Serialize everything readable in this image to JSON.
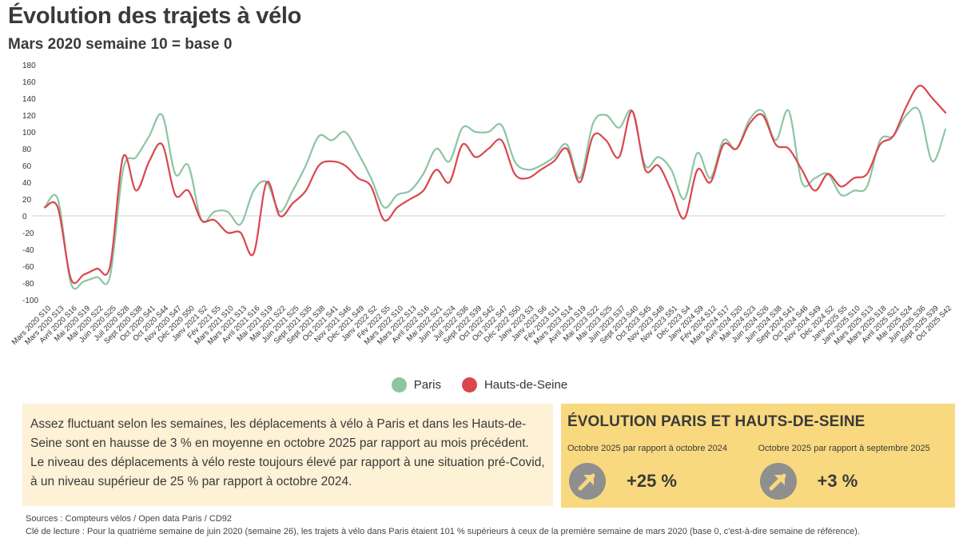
{
  "title": "Évolution des trajets à vélo",
  "subtitle": "Mars 2020 semaine 10 = base 0",
  "legend": [
    {
      "name": "Paris",
      "color": "#8dc5a4"
    },
    {
      "name": "Hauts-de-Seine",
      "color": "#d9474d"
    }
  ],
  "comment": "Assez fluctuant selon les semaines, les déplacements à vélo à Paris et dans les Hauts-de-Seine sont en hausse de 3 % en moyenne en octobre 2025 par rapport au mois précédent. Le niveau des déplacements à vélo reste toujours élevé par rapport à une situation pré-Covid, à un niveau supérieur de 25 % par rapport à octobre 2024.",
  "evolution": {
    "title": "ÉVOLUTION PARIS ET HAUTS-DE-SEINE",
    "items": [
      {
        "label": "Octobre 2025 par rapport à octobre 2024",
        "value": "+25 %",
        "icon": "arrow-up-right-icon"
      },
      {
        "label": "Octobre 2025 par rapport à septembre 2025",
        "value": "+3 %",
        "icon": "arrow-up-right-icon"
      }
    ]
  },
  "sources": "Sources : Compteurs vélos / Open data Paris / CD92",
  "key_note": "Clé de lecture : Pour la quatrième semaine de juin 2020 (semaine 26), les trajets à vélo dans Paris étaient 101 % supérieurs à ceux de la première semaine de mars 2020  (base 0, c'est-à-dire semaine de référence).",
  "chart_data": {
    "type": "line",
    "title": "Évolution des trajets à vélo",
    "subtitle": "Mars 2020 semaine 10 = base 0",
    "ylim": [
      -100,
      180
    ],
    "yticks": [
      180,
      160,
      140,
      120,
      100,
      80,
      60,
      40,
      20,
      0,
      -20,
      -40,
      -60,
      -80,
      -100
    ],
    "legend_position": "bottom",
    "categories": [
      "Mars 2020 S10",
      "Mars 2020 S13",
      "Avril 2020 S16",
      "Mai 2020 S19",
      "Mai 2020 S22",
      "Juin 2020 S25",
      "Juil 2020 S28",
      "Sept 2020 S38",
      "Oct 2020 S41",
      "Oct 2020 S44",
      "Nov 2020 S47",
      "Déc 2020 S50",
      "Janv 2021 S2",
      "Fév 2021 S5",
      "Mars 2021 S10",
      "Mars 2021 S13",
      "Avril 2021 S16",
      "Mai 2021 S19",
      "Mai 2021 S22",
      "Juin 2021 S25",
      "Sept 2021 S35",
      "Sept 2021 S38",
      "Oct 2021 S41",
      "Nov 2021 S46",
      "Déc 2021 S49",
      "Janv 2022 S2",
      "Fév 2022 S5",
      "Mars 2022 S10",
      "Mars 2022 S13",
      "Avril 2022 S16",
      "Mai 2022 S21",
      "Juin 2022 S24",
      "Juil 2022 S36",
      "Sept 2022 S39",
      "Oct 2022 S42",
      "Oct 2022 S47",
      "Déc 2022 S50",
      "Janv 2023 S3",
      "Janv 2023 S6",
      "Fév 2023 S11",
      "Mars 2023 S14",
      "Avril 2023 S19",
      "Mai 2023 S22",
      "Mai 2023 S25",
      "Juin 2023 S37",
      "Sept 2023 S40",
      "Oct 2023 S45",
      "Nov 2023 S48",
      "Nov 2023 S51",
      "Déc 2023 S4",
      "Janv 2024 S9",
      "Fév 2024 S12",
      "Mars 2024 S17",
      "Avril 2024 S20",
      "Mai 2024 S23",
      "Juin 2024 S26",
      "Juin 2024 S38",
      "Sept 2024 S41",
      "Oct 2024 S46",
      "Nov 2024 S49",
      "Déc 2024 S2",
      "Janv 2025 S5",
      "Janv 2025 S10",
      "Mars 2025 S13",
      "Mars 2025 S18",
      "Avril 2025 S21",
      "Mai 2025 S24",
      "Juin 2025 S36",
      "Sept 2025 S39",
      "Oct 2025 S42"
    ],
    "series": [
      {
        "name": "Paris",
        "color": "#8dc5a4",
        "values": [
          10,
          20,
          -80,
          -78,
          -73,
          -72,
          55,
          70,
          95,
          120,
          50,
          60,
          -5,
          5,
          5,
          -10,
          30,
          40,
          5,
          30,
          60,
          95,
          90,
          100,
          75,
          45,
          10,
          25,
          30,
          50,
          80,
          65,
          105,
          100,
          100,
          108,
          65,
          55,
          60,
          70,
          85,
          45,
          110,
          120,
          105,
          125,
          60,
          70,
          55,
          20,
          75,
          45,
          90,
          80,
          115,
          125,
          90,
          125,
          40,
          45,
          50,
          25,
          30,
          35,
          90,
          95,
          120,
          125,
          65,
          103
        ]
      },
      {
        "name": "Hauts-de-Seine",
        "color": "#d9474d",
        "values": [
          10,
          10,
          -75,
          -70,
          -63,
          -60,
          70,
          30,
          65,
          85,
          25,
          30,
          -5,
          -5,
          -20,
          -20,
          -45,
          40,
          0,
          15,
          30,
          60,
          65,
          60,
          45,
          35,
          -5,
          10,
          20,
          30,
          55,
          40,
          85,
          70,
          80,
          90,
          50,
          45,
          55,
          65,
          80,
          40,
          95,
          90,
          70,
          125,
          55,
          60,
          30,
          -3,
          55,
          40,
          85,
          80,
          110,
          120,
          85,
          80,
          55,
          30,
          50,
          35,
          45,
          50,
          85,
          95,
          130,
          155,
          140,
          123
        ]
      }
    ]
  }
}
